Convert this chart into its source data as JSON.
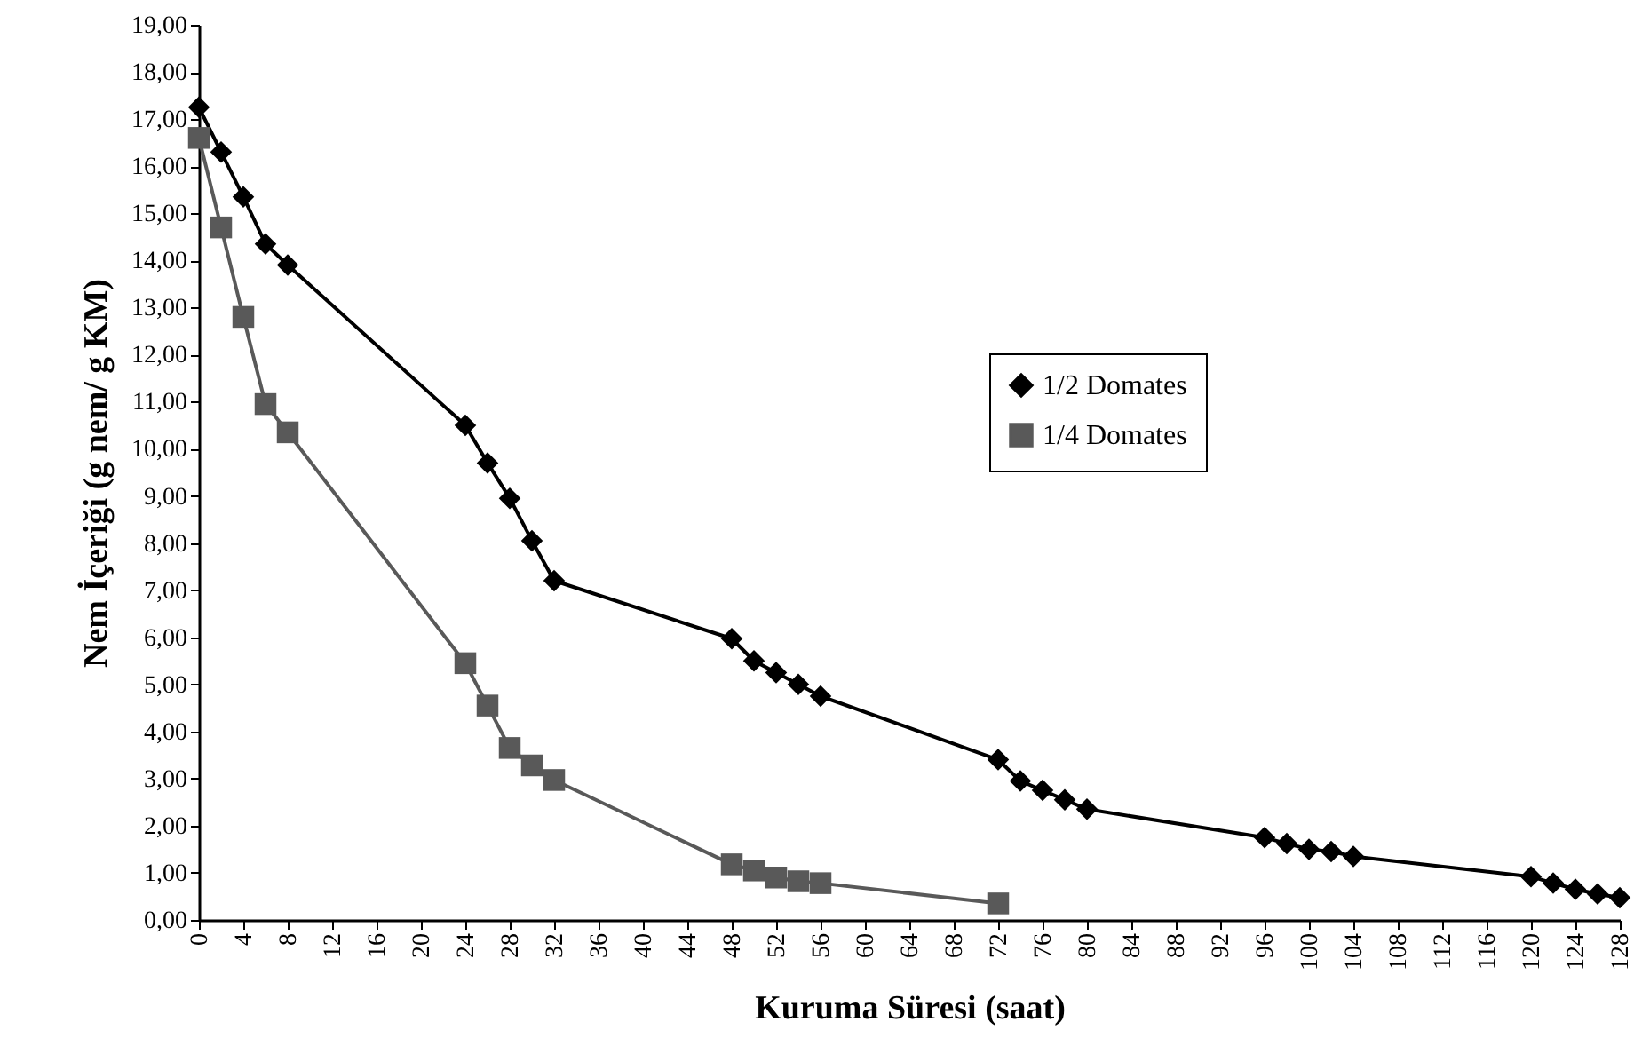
{
  "chart_data": {
    "type": "line",
    "xlabel": "Kuruma Süresi (saat)",
    "ylabel": "Nem İçeriği (g nem/ g KM)",
    "xlim": [
      0,
      128
    ],
    "xticks": [
      0,
      4,
      8,
      12,
      16,
      20,
      24,
      28,
      32,
      36,
      40,
      44,
      48,
      52,
      56,
      60,
      64,
      68,
      72,
      76,
      80,
      84,
      88,
      92,
      96,
      100,
      104,
      108,
      112,
      116,
      120,
      124,
      128
    ],
    "ylim": [
      0,
      19
    ],
    "yticks": [
      {
        "value": 0,
        "label": "0,00"
      },
      {
        "value": 1,
        "label": "1,00"
      },
      {
        "value": 2,
        "label": "2,00"
      },
      {
        "value": 3,
        "label": "3,00"
      },
      {
        "value": 4,
        "label": "4,00"
      },
      {
        "value": 5,
        "label": "5,00"
      },
      {
        "value": 6,
        "label": "6,00"
      },
      {
        "value": 7,
        "label": "7,00"
      },
      {
        "value": 8,
        "label": "8,00"
      },
      {
        "value": 9,
        "label": "9,00"
      },
      {
        "value": 10,
        "label": "10,00"
      },
      {
        "value": 11,
        "label": "11,00"
      },
      {
        "value": 12,
        "label": "12,00"
      },
      {
        "value": 13,
        "label": "13,00"
      },
      {
        "value": 14,
        "label": "14,00"
      },
      {
        "value": 15,
        "label": "15,00"
      },
      {
        "value": 16,
        "label": "16,00"
      },
      {
        "value": 17,
        "label": "17,00"
      },
      {
        "value": 18,
        "label": "18,00"
      },
      {
        "value": 19,
        "label": "19,00"
      }
    ],
    "legend": "right",
    "grid": false,
    "series": [
      {
        "name": "1/2 Domates",
        "color": "#000000",
        "marker": "diamond",
        "x": [
          0,
          2,
          4,
          6,
          8,
          24,
          26,
          28,
          30,
          32,
          48,
          50,
          52,
          54,
          56,
          72,
          74,
          76,
          78,
          80,
          96,
          98,
          100,
          102,
          104,
          120,
          122,
          124,
          126,
          128
        ],
        "values": [
          17.25,
          16.3,
          15.35,
          14.35,
          13.9,
          10.5,
          9.7,
          8.95,
          8.05,
          7.2,
          5.97,
          5.5,
          5.25,
          5.0,
          4.75,
          3.4,
          2.95,
          2.75,
          2.55,
          2.35,
          1.75,
          1.62,
          1.5,
          1.45,
          1.35,
          0.92,
          0.78,
          0.65,
          0.55,
          0.47
        ]
      },
      {
        "name": "1/4 Domates",
        "color": "#595959",
        "marker": "square",
        "x": [
          0,
          2,
          4,
          6,
          8,
          24,
          26,
          28,
          30,
          32,
          48,
          50,
          52,
          54,
          56,
          72
        ],
        "values": [
          16.6,
          14.7,
          12.8,
          10.95,
          10.35,
          5.45,
          4.55,
          3.65,
          3.28,
          2.97,
          1.18,
          1.05,
          0.9,
          0.82,
          0.78,
          0.35
        ]
      }
    ]
  }
}
